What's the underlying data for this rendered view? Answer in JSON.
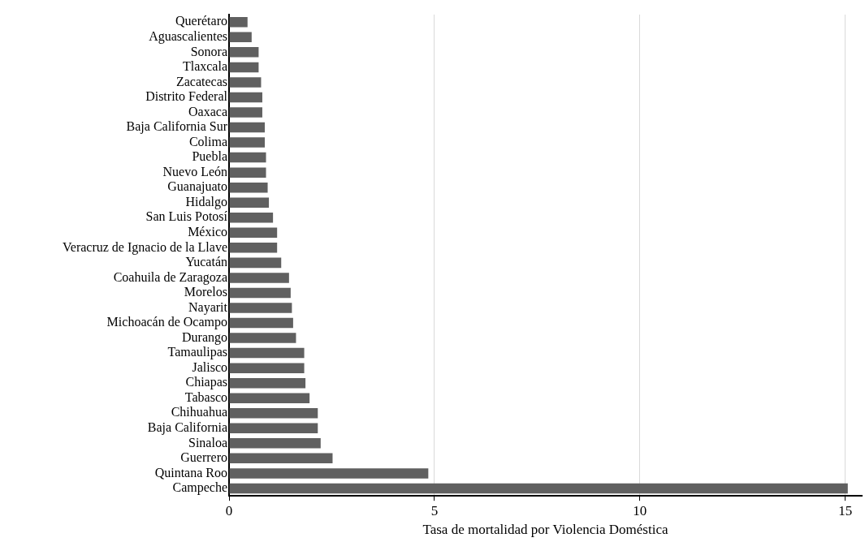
{
  "chart_data": {
    "type": "bar",
    "orientation": "horizontal",
    "xlabel": "Tasa de mortalidad por Violencia Doméstica",
    "categories": [
      "Querétaro",
      "Aguascalientes",
      "Sonora",
      "Tlaxcala",
      "Zacatecas",
      "Distrito Federal",
      "Oaxaca",
      "Baja California Sur",
      "Colima",
      "Puebla",
      "Nuevo León",
      "Guanajuato",
      "Hidalgo",
      "San Luis Potosí",
      "México",
      "Veracruz de Ignacio de la Llave",
      "Yucatán",
      "Coahuila de Zaragoza",
      "Morelos",
      "Nayarit",
      "Michoacán de Ocampo",
      "Durango",
      "Tamaulipas",
      "Jalisco",
      "Chiapas",
      "Tabasco",
      "Chihuahua",
      "Baja California",
      "Sinaloa",
      "Guerrero",
      "Quintana Roo",
      "Campeche"
    ],
    "values": [
      0.45,
      0.55,
      0.72,
      0.72,
      0.78,
      0.81,
      0.81,
      0.87,
      0.87,
      0.9,
      0.9,
      0.94,
      0.97,
      1.07,
      1.17,
      1.17,
      1.27,
      1.46,
      1.5,
      1.53,
      1.56,
      1.63,
      1.83,
      1.83,
      1.86,
      1.96,
      2.16,
      2.16,
      2.23,
      2.52,
      4.85,
      15.06
    ],
    "color": "#606060",
    "xlim": [
      0,
      15.4
    ],
    "xticks": [
      0,
      5,
      10,
      15
    ],
    "grid": "x",
    "legend": false
  }
}
